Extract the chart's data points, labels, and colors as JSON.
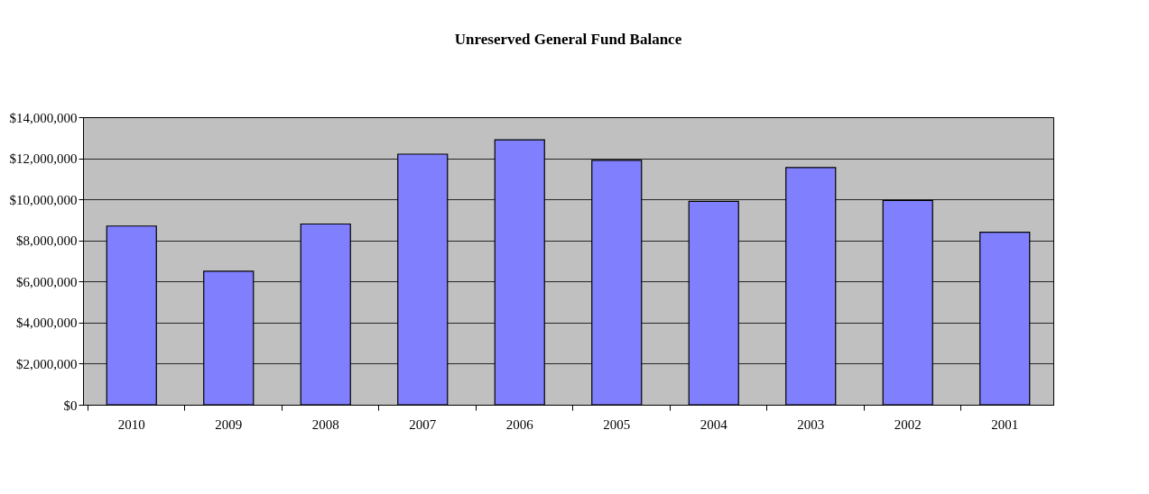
{
  "chart_data": {
    "type": "bar",
    "title": "Unreserved General Fund Balance",
    "categories": [
      "2010",
      "2009",
      "2008",
      "2007",
      "2006",
      "2005",
      "2004",
      "2003",
      "2002",
      "2001"
    ],
    "values": [
      8700000,
      6500000,
      8800000,
      12200000,
      12900000,
      11900000,
      9900000,
      11550000,
      9950000,
      8400000
    ],
    "color": "#8080ff",
    "ylim": [
      0,
      14000000
    ],
    "yticks": [
      {
        "value": 0,
        "label": "$0"
      },
      {
        "value": 2000000,
        "label": "$2,000,000"
      },
      {
        "value": 4000000,
        "label": "$4,000,000"
      },
      {
        "value": 6000000,
        "label": "$6,000,000"
      },
      {
        "value": 8000000,
        "label": "$8,000,000"
      },
      {
        "value": 10000000,
        "label": "$10,000,000"
      },
      {
        "value": 12000000,
        "label": "$12,000,000"
      },
      {
        "value": 14000000,
        "label": "$14,000,000"
      }
    ],
    "grid": "y"
  }
}
